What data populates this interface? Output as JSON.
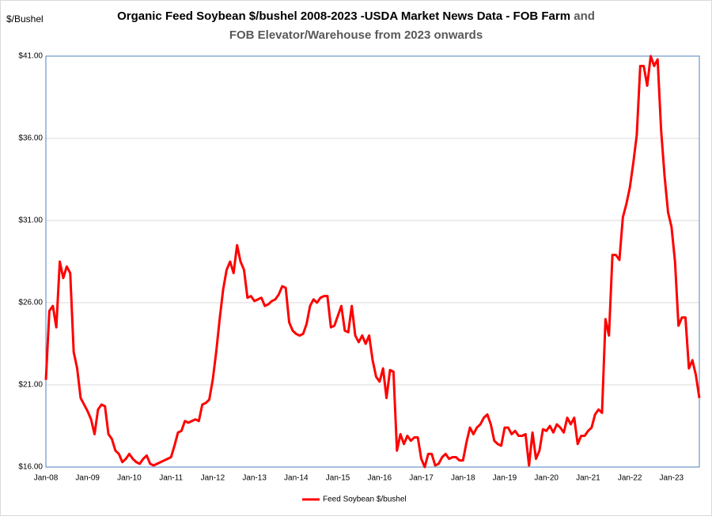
{
  "chart_data": {
    "type": "line",
    "title_parts": [
      {
        "text": "Organic Feed Soybean $/bushel 2008-2023 -USDA Market News Data - FOB Farm",
        "color": "#000000"
      },
      {
        "text": "and",
        "color": "#595959"
      },
      {
        "text": "FOB Elevator/Warehouse from 2023 onwards",
        "color": "#595959"
      }
    ],
    "y_label": "$/Bushel",
    "categories": [
      "Jan-08",
      null,
      null,
      null,
      null,
      null,
      null,
      null,
      null,
      null,
      null,
      null,
      "Jan-09",
      null,
      null,
      null,
      null,
      null,
      null,
      null,
      null,
      null,
      null,
      null,
      "Jan-10",
      null,
      null,
      null,
      null,
      null,
      null,
      null,
      null,
      null,
      null,
      null,
      "Jan-11",
      null,
      null,
      null,
      null,
      null,
      null,
      null,
      null,
      null,
      null,
      null,
      "Jan-12",
      null,
      null,
      null,
      null,
      null,
      null,
      null,
      null,
      null,
      null,
      null,
      "Jan-13",
      null,
      null,
      null,
      null,
      null,
      null,
      null,
      null,
      null,
      null,
      null,
      "Jan-14",
      null,
      null,
      null,
      null,
      null,
      null,
      null,
      null,
      null,
      null,
      null,
      "Jan-15",
      null,
      null,
      null,
      null,
      null,
      null,
      null,
      null,
      null,
      null,
      null,
      "Jan-16",
      null,
      null,
      null,
      null,
      null,
      null,
      null,
      null,
      null,
      null,
      null,
      "Jan-17",
      null,
      null,
      null,
      null,
      null,
      null,
      null,
      null,
      null,
      null,
      null,
      "Jan-18",
      null,
      null,
      null,
      null,
      null,
      null,
      null,
      null,
      null,
      null,
      null,
      "Jan-19",
      null,
      null,
      null,
      null,
      null,
      null,
      null,
      null,
      null,
      null,
      null,
      "Jan-20",
      null,
      null,
      null,
      null,
      null,
      null,
      null,
      null,
      null,
      null,
      null,
      "Jan-21",
      null,
      null,
      null,
      null,
      null,
      null,
      null,
      null,
      null,
      null,
      null,
      "Jan-22",
      null,
      null,
      null,
      null,
      null,
      null,
      null,
      null,
      null,
      null,
      null,
      "Jan-23",
      null,
      null,
      null,
      null,
      null,
      null,
      null,
      null
    ],
    "series": [
      {
        "name": "Feed Soybean $/bushel",
        "color": "#ff0000",
        "values": [
          21.3,
          25.5,
          25.8,
          24.5,
          28.5,
          27.5,
          28.2,
          27.8,
          23,
          22,
          20.2,
          19.8,
          19.4,
          18.9,
          18,
          19.5,
          19.8,
          19.7,
          18,
          17.7,
          17,
          16.8,
          16.3,
          16.5,
          16.8,
          16.5,
          16.3,
          16.2,
          16.5,
          16.7,
          16.2,
          16.1,
          16.2,
          16.3,
          16.4,
          16.5,
          16.6,
          17.3,
          18.1,
          18.2,
          18.8,
          18.7,
          18.8,
          18.9,
          18.8,
          19.8,
          19.9,
          20.1,
          21.3,
          23,
          25,
          26.8,
          28,
          28.5,
          27.8,
          29.5,
          28.5,
          28,
          26.3,
          26.4,
          26.1,
          26.2,
          26.3,
          25.8,
          25.9,
          26.1,
          26.2,
          26.5,
          27,
          26.9,
          24.8,
          24.3,
          24.1,
          24,
          24.1,
          24.7,
          25.8,
          26.2,
          26,
          26.3,
          26.4,
          26.4,
          24.5,
          24.6,
          25.2,
          25.8,
          24.3,
          24.2,
          25.8,
          24,
          23.6,
          24,
          23.5,
          24,
          22.5,
          21.5,
          21.2,
          22,
          20.2,
          21.9,
          21.8,
          17,
          18,
          17.4,
          17.9,
          17.6,
          17.8,
          17.8,
          16.5,
          16,
          16.8,
          16.8,
          16.1,
          16.2,
          16.6,
          16.8,
          16.5,
          16.6,
          16.6,
          16.4,
          16.4,
          17.5,
          18.4,
          18,
          18.4,
          18.6,
          19,
          19.2,
          18.6,
          17.6,
          17.4,
          17.3,
          18.4,
          18.4,
          18,
          18.2,
          17.9,
          17.9,
          18,
          16.1,
          18.1,
          16.5,
          17,
          18.3,
          18.2,
          18.5,
          18.1,
          18.6,
          18.4,
          18.1,
          19,
          18.6,
          19,
          17.4,
          17.9,
          17.9,
          18.2,
          18.4,
          19.2,
          19.5,
          19.3,
          25,
          24,
          28.9,
          28.9,
          28.6,
          31.2,
          32,
          33,
          34.5,
          36.2,
          40.4,
          40.4,
          39.2,
          41,
          40.4,
          40.8,
          36.5,
          33.7,
          31.5,
          30.6,
          28.5,
          24.6,
          25.1,
          25.1,
          22,
          22.5,
          21.6,
          20.2
        ]
      }
    ],
    "ylim": [
      16,
      41
    ],
    "yticks": [
      {
        "value": 16,
        "label": "$16.00"
      },
      {
        "value": 21,
        "label": "$21.00"
      },
      {
        "value": 26,
        "label": "$26.00"
      },
      {
        "value": 31,
        "label": "$31.00"
      },
      {
        "value": 36,
        "label": "$36.00"
      },
      {
        "value": 41,
        "label": "$41.00"
      }
    ],
    "grid": true,
    "legend": "bottom"
  }
}
